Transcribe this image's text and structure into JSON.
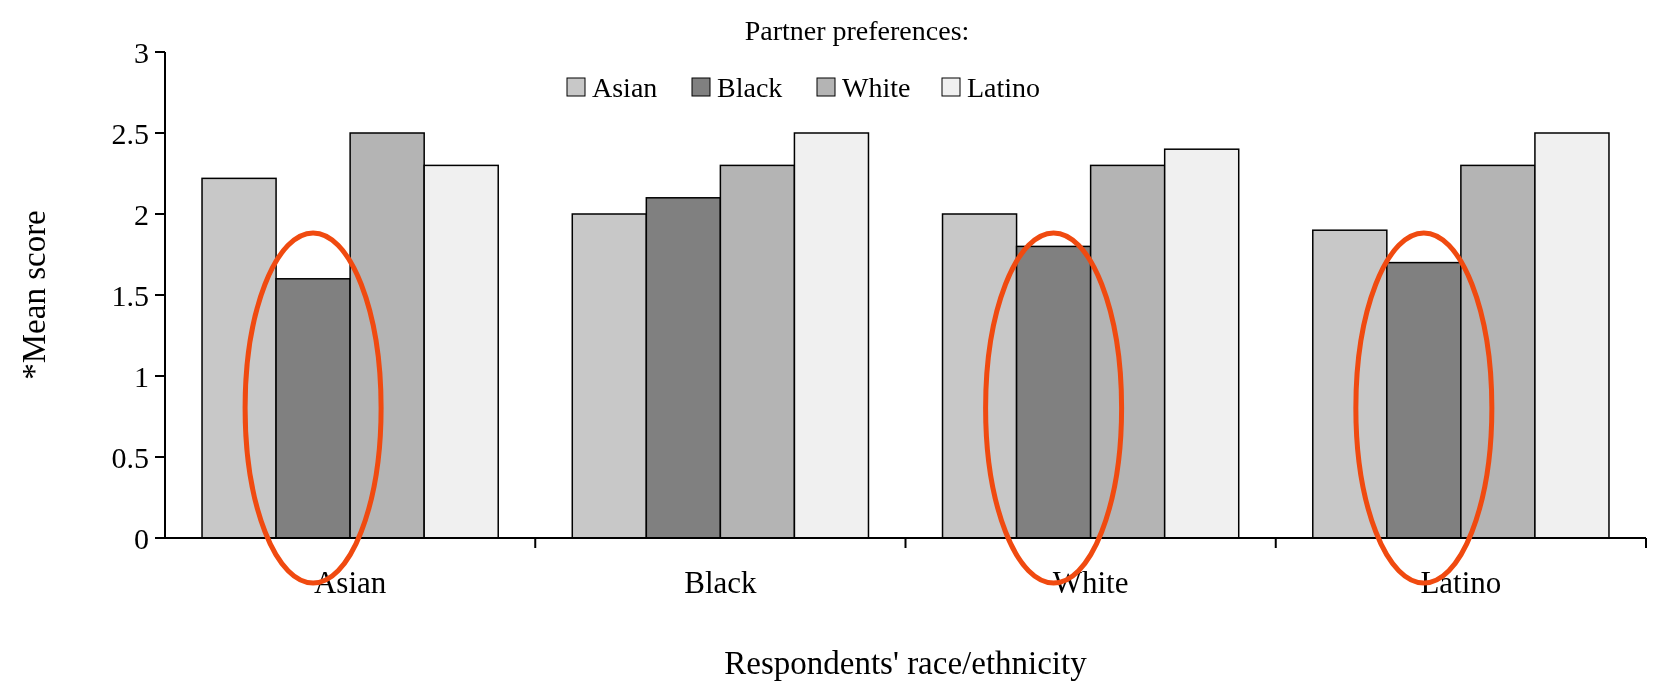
{
  "chart_data": {
    "type": "bar",
    "xlabel": "Respondents' race/ethnicity",
    "ylabel": "*Mean score",
    "legend_title": "Partner preferences:",
    "legend": "top",
    "categories": [
      "Asian",
      "Black",
      "White",
      "Latino"
    ],
    "series": [
      {
        "name": "Asian",
        "color": "#c8c8c8",
        "values": [
          2.22,
          2.0,
          2.0,
          1.9
        ]
      },
      {
        "name": "Black",
        "color": "#808080",
        "values": [
          1.6,
          2.1,
          1.8,
          1.7
        ]
      },
      {
        "name": "White",
        "color": "#b4b4b4",
        "values": [
          2.5,
          2.3,
          2.3,
          2.3
        ]
      },
      {
        "name": "Latino",
        "color": "#f0f0f0",
        "values": [
          2.3,
          2.5,
          2.4,
          2.5
        ]
      }
    ],
    "ylim": [
      0,
      3
    ],
    "yticks": [
      0,
      0.5,
      1,
      1.5,
      2,
      2.5,
      3
    ]
  }
}
